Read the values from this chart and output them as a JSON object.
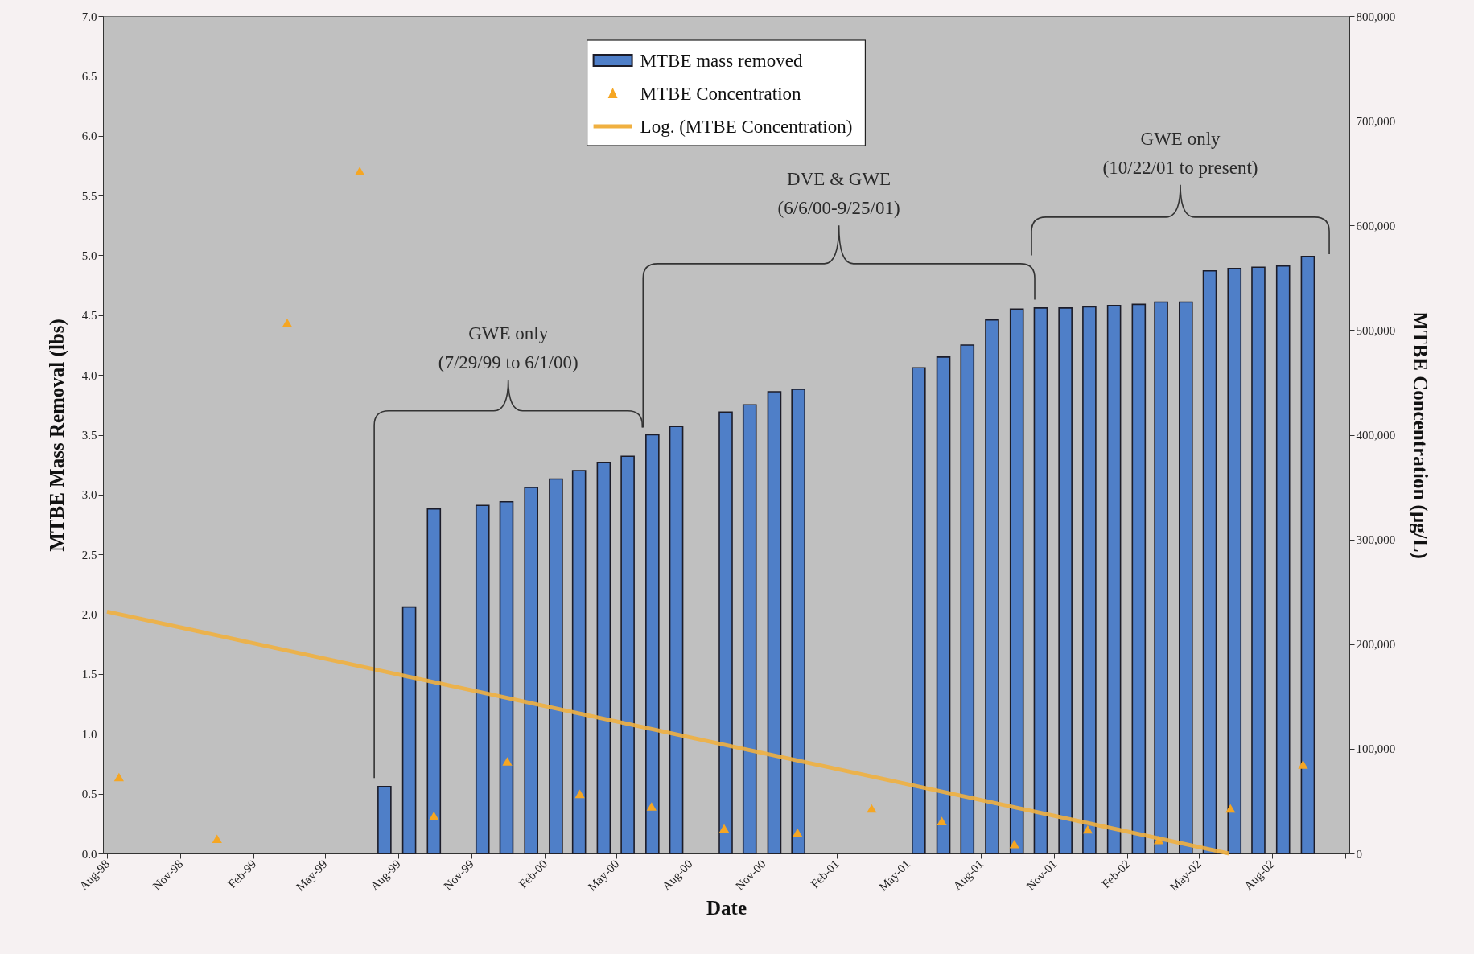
{
  "chart_data": {
    "type": "bar",
    "xlabel": "Date",
    "ylabel": "MTBE Mass Removal (lbs)",
    "y2label": "MTBE Concentration (µg/L)",
    "xlim": [
      "1998-08",
      "2002-11"
    ],
    "xticks": [
      {
        "value": "1998-08",
        "label": "Aug-98"
      },
      {
        "value": "1998-11",
        "label": "Nov-98"
      },
      {
        "value": "1999-02",
        "label": "Feb-99"
      },
      {
        "value": "1999-05",
        "label": "May-99"
      },
      {
        "value": "1999-08",
        "label": "Aug-99"
      },
      {
        "value": "1999-11",
        "label": "Nov-99"
      },
      {
        "value": "2000-02",
        "label": "Feb-00"
      },
      {
        "value": "2000-05",
        "label": "May-00"
      },
      {
        "value": "2000-08",
        "label": "Aug-00"
      },
      {
        "value": "2000-11",
        "label": "Nov-00"
      },
      {
        "value": "2001-02",
        "label": "Feb-01"
      },
      {
        "value": "2001-05",
        "label": "May-01"
      },
      {
        "value": "2001-08",
        "label": "Aug-01"
      },
      {
        "value": "2001-11",
        "label": "Nov-01"
      },
      {
        "value": "2002-02",
        "label": "Feb-02"
      },
      {
        "value": "2002-05",
        "label": "May-02"
      },
      {
        "value": "2002-08",
        "label": "Aug-02"
      },
      {
        "value": "2002-11",
        "label": null
      }
    ],
    "ylim": [
      0,
      7
    ],
    "yticks": [
      {
        "value": 0,
        "label": "0.0"
      },
      {
        "value": 0.5,
        "label": "0.5"
      },
      {
        "value": 1,
        "label": "1.0"
      },
      {
        "value": 1.5,
        "label": "1.5"
      },
      {
        "value": 2,
        "label": "2.0"
      },
      {
        "value": 2.5,
        "label": "2.5"
      },
      {
        "value": 3,
        "label": "3.0"
      },
      {
        "value": 3.5,
        "label": "3.5"
      },
      {
        "value": 4,
        "label": "4.0"
      },
      {
        "value": 4.5,
        "label": "4.5"
      },
      {
        "value": 5,
        "label": "5.0"
      },
      {
        "value": 5.5,
        "label": "5.5"
      },
      {
        "value": 6,
        "label": "6.0"
      },
      {
        "value": 6.5,
        "label": "6.5"
      },
      {
        "value": 7,
        "label": "7.0"
      }
    ],
    "y2lim": [
      0,
      800000
    ],
    "y2ticks": [
      {
        "value": 0,
        "label": "0"
      },
      {
        "value": 100000,
        "label": "100,000"
      },
      {
        "value": 200000,
        "label": "200,000"
      },
      {
        "value": 300000,
        "label": "300,000"
      },
      {
        "value": 400000,
        "label": "400,000"
      },
      {
        "value": 500000,
        "label": "500,000"
      },
      {
        "value": 600000,
        "label": "600,000"
      },
      {
        "value": 700000,
        "label": "700,000"
      },
      {
        "value": 800000,
        "label": "800,000"
      }
    ],
    "legend": "top",
    "grid": false,
    "series": [
      {
        "name": "MTBE mass removed",
        "color": "#4f7fc8",
        "x": [
          "1999-07-15",
          "1999-08-15",
          "1999-09-15",
          "1999-11-15",
          "1999-12-15",
          "2000-01-15",
          "2000-02-15",
          "2000-03-15",
          "2000-04-15",
          "2000-05-15",
          "2000-06-15",
          "2000-07-15",
          "2000-09-15",
          "2000-10-15",
          "2000-11-15",
          "2000-12-15",
          "2001-05-15",
          "2001-06-15",
          "2001-07-15",
          "2001-08-15",
          "2001-09-15",
          "2001-10-15",
          "2001-11-15",
          "2001-12-15",
          "2002-01-15",
          "2002-02-15",
          "2002-03-15",
          "2002-04-15",
          "2002-05-15",
          "2002-06-15",
          "2002-07-15",
          "2002-08-15",
          "2002-09-15"
        ],
        "values": [
          0.56,
          2.06,
          2.88,
          2.91,
          2.94,
          3.06,
          3.13,
          3.2,
          3.27,
          3.32,
          3.5,
          3.57,
          3.69,
          3.75,
          3.86,
          3.88,
          4.06,
          4.15,
          4.25,
          4.46,
          4.55,
          4.56,
          4.56,
          4.57,
          4.58,
          4.59,
          4.61,
          4.61,
          4.87,
          4.89,
          4.9,
          4.91,
          4.99
        ]
      },
      {
        "type": "scatter",
        "name": "MTBE Concentration",
        "color": "#f5a623",
        "axis": "y2",
        "marker": "triangle",
        "x": [
          "1998-08-16",
          "1998-12-17",
          "1999-03-15",
          "1999-06-14",
          "1999-09-15",
          "1999-12-16",
          "2000-03-16",
          "2000-06-14",
          "2000-09-13",
          "2000-12-14",
          "2001-03-17",
          "2001-06-13",
          "2001-09-12",
          "2001-12-13",
          "2002-03-12",
          "2002-06-10",
          "2002-09-09"
        ],
        "values": [
          73000,
          14000,
          507000,
          652000,
          36000,
          88000,
          57000,
          45000,
          24000,
          20000,
          43000,
          31000,
          9000,
          23000,
          13000,
          43000,
          85000
        ]
      },
      {
        "type": "line",
        "name": "Log. (MTBE Concentration)",
        "color": "#f0b040",
        "axis": "y2",
        "line_style": "solid",
        "x": [
          "1998-08-01",
          "2002-06-08"
        ],
        "values": [
          231000,
          0
        ]
      }
    ],
    "annotations": [
      "GWE only\n(7/29/99 to 6/1/00)",
      "DVE & GWE\n(6/6/00-9/25/01)",
      "GWE only\n(10/22/01 to present)"
    ]
  }
}
